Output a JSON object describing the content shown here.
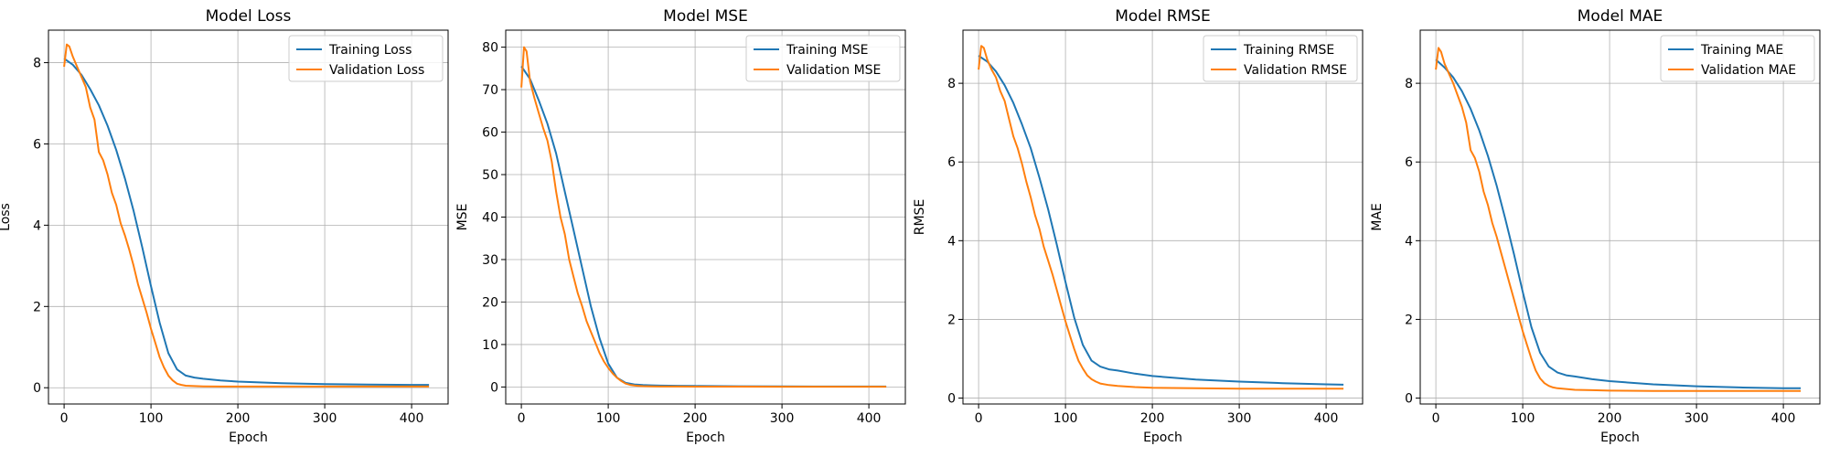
{
  "figure": {
    "background": "#ffffff"
  },
  "chart_data": [
    {
      "type": "line",
      "title": "Model Loss",
      "xlabel": "Epoch",
      "ylabel": "Loss",
      "xlim": [
        -18,
        442
      ],
      "ylim": [
        -0.4,
        8.8
      ],
      "xticks": [
        0,
        100,
        200,
        300,
        400
      ],
      "yticks": [
        0,
        2,
        4,
        6,
        8
      ],
      "grid": true,
      "legend": "top-right",
      "series": [
        {
          "name": "Training Loss",
          "color": "#1f77b4",
          "x": [
            0,
            10,
            20,
            30,
            40,
            50,
            60,
            70,
            80,
            90,
            100,
            110,
            120,
            130,
            140,
            150,
            160,
            180,
            200,
            250,
            300,
            350,
            400,
            420
          ],
          "y": [
            8.1,
            7.95,
            7.7,
            7.35,
            6.95,
            6.45,
            5.85,
            5.15,
            4.35,
            3.45,
            2.5,
            1.6,
            0.85,
            0.45,
            0.3,
            0.25,
            0.22,
            0.18,
            0.15,
            0.11,
            0.09,
            0.08,
            0.07,
            0.07
          ]
        },
        {
          "name": "Validation Loss",
          "color": "#ff7f0e",
          "x": [
            0,
            3,
            6,
            10,
            15,
            20,
            25,
            30,
            35,
            40,
            45,
            50,
            55,
            60,
            65,
            70,
            75,
            80,
            85,
            90,
            95,
            100,
            105,
            110,
            115,
            120,
            125,
            130,
            135,
            140,
            150,
            160,
            180,
            200,
            250,
            300,
            350,
            400,
            420
          ],
          "y": [
            7.9,
            8.45,
            8.4,
            8.15,
            7.9,
            7.65,
            7.4,
            6.9,
            6.6,
            5.8,
            5.6,
            5.25,
            4.8,
            4.5,
            4.05,
            3.75,
            3.4,
            3.0,
            2.55,
            2.2,
            1.85,
            1.45,
            1.1,
            0.75,
            0.5,
            0.3,
            0.18,
            0.1,
            0.07,
            0.05,
            0.04,
            0.035,
            0.03,
            0.03,
            0.03,
            0.03,
            0.03,
            0.03,
            0.03
          ]
        }
      ]
    },
    {
      "type": "line",
      "title": "Model MSE",
      "xlabel": "Epoch",
      "ylabel": "MSE",
      "xlim": [
        -18,
        442
      ],
      "ylim": [
        -4,
        84
      ],
      "xticks": [
        0,
        100,
        200,
        300,
        400
      ],
      "yticks": [
        0,
        10,
        20,
        30,
        40,
        50,
        60,
        70,
        80
      ],
      "grid": true,
      "legend": "top-right",
      "series": [
        {
          "name": "Training MSE",
          "color": "#1f77b4",
          "x": [
            0,
            10,
            20,
            30,
            40,
            50,
            60,
            70,
            80,
            90,
            100,
            110,
            120,
            130,
            140,
            150,
            160,
            180,
            200,
            250,
            300,
            350,
            400,
            420
          ],
          "y": [
            75.5,
            72.5,
            67.5,
            62,
            55,
            46,
            37,
            28,
            19,
            11.5,
            5.5,
            2.2,
            1.0,
            0.6,
            0.45,
            0.38,
            0.33,
            0.28,
            0.24,
            0.18,
            0.14,
            0.12,
            0.11,
            0.1
          ]
        },
        {
          "name": "Validation MSE",
          "color": "#ff7f0e",
          "x": [
            0,
            3,
            6,
            10,
            15,
            20,
            25,
            30,
            35,
            40,
            45,
            50,
            55,
            60,
            65,
            70,
            75,
            80,
            85,
            90,
            95,
            100,
            105,
            110,
            115,
            120,
            125,
            130,
            135,
            140,
            150,
            160,
            180,
            200,
            250,
            300,
            350,
            400,
            420
          ],
          "y": [
            70.5,
            80,
            79,
            72,
            68,
            64.5,
            61,
            58,
            53,
            46,
            40,
            36,
            30,
            26,
            22,
            19,
            15.5,
            13,
            10.5,
            8,
            6,
            4.5,
            3.2,
            2.2,
            1.4,
            0.8,
            0.5,
            0.35,
            0.25,
            0.2,
            0.15,
            0.12,
            0.1,
            0.09,
            0.08,
            0.07,
            0.06,
            0.06,
            0.06
          ]
        }
      ]
    },
    {
      "type": "line",
      "title": "Model RMSE",
      "xlabel": "Epoch",
      "ylabel": "RMSE",
      "xlim": [
        -18,
        442
      ],
      "ylim": [
        -0.15,
        9.35
      ],
      "xticks": [
        0,
        100,
        200,
        300,
        400
      ],
      "yticks": [
        0,
        2,
        4,
        6,
        8
      ],
      "grid": true,
      "legend": "top-right",
      "series": [
        {
          "name": "Training RMSE",
          "color": "#1f77b4",
          "x": [
            0,
            10,
            20,
            30,
            40,
            50,
            60,
            70,
            80,
            90,
            100,
            110,
            120,
            130,
            140,
            150,
            160,
            180,
            200,
            250,
            300,
            350,
            400,
            420
          ],
          "y": [
            8.7,
            8.55,
            8.3,
            7.95,
            7.5,
            6.95,
            6.35,
            5.6,
            4.8,
            3.9,
            2.95,
            2.05,
            1.35,
            0.95,
            0.8,
            0.73,
            0.7,
            0.62,
            0.56,
            0.47,
            0.42,
            0.38,
            0.35,
            0.34
          ]
        },
        {
          "name": "Validation RMSE",
          "color": "#ff7f0e",
          "x": [
            0,
            3,
            6,
            10,
            15,
            20,
            25,
            30,
            35,
            40,
            45,
            50,
            55,
            60,
            65,
            70,
            75,
            80,
            85,
            90,
            95,
            100,
            105,
            110,
            115,
            120,
            125,
            130,
            135,
            140,
            150,
            160,
            180,
            200,
            250,
            300,
            350,
            400,
            420
          ],
          "y": [
            8.35,
            8.95,
            8.9,
            8.6,
            8.35,
            8.15,
            7.8,
            7.55,
            7.1,
            6.65,
            6.35,
            5.95,
            5.5,
            5.1,
            4.65,
            4.3,
            3.85,
            3.5,
            3.15,
            2.75,
            2.35,
            1.95,
            1.6,
            1.25,
            0.95,
            0.75,
            0.58,
            0.48,
            0.42,
            0.37,
            0.33,
            0.31,
            0.28,
            0.26,
            0.25,
            0.24,
            0.24,
            0.24,
            0.24
          ]
        }
      ]
    },
    {
      "type": "line",
      "title": "Model MAE",
      "xlabel": "Epoch",
      "ylabel": "MAE",
      "xlim": [
        -18,
        442
      ],
      "ylim": [
        -0.15,
        9.35
      ],
      "xticks": [
        0,
        100,
        200,
        300,
        400
      ],
      "yticks": [
        0,
        2,
        4,
        6,
        8
      ],
      "grid": true,
      "legend": "top-right",
      "series": [
        {
          "name": "Training MAE",
          "color": "#1f77b4",
          "x": [
            0,
            10,
            20,
            30,
            40,
            50,
            60,
            70,
            80,
            90,
            100,
            110,
            120,
            130,
            140,
            150,
            160,
            180,
            200,
            250,
            300,
            350,
            400,
            420
          ],
          "y": [
            8.6,
            8.4,
            8.15,
            7.8,
            7.35,
            6.8,
            6.15,
            5.4,
            4.55,
            3.65,
            2.7,
            1.8,
            1.15,
            0.8,
            0.65,
            0.58,
            0.55,
            0.48,
            0.43,
            0.35,
            0.3,
            0.27,
            0.25,
            0.25
          ]
        },
        {
          "name": "Validation MAE",
          "color": "#ff7f0e",
          "x": [
            0,
            3,
            6,
            10,
            15,
            20,
            25,
            30,
            35,
            40,
            45,
            50,
            55,
            60,
            65,
            70,
            75,
            80,
            85,
            90,
            95,
            100,
            105,
            110,
            115,
            120,
            125,
            130,
            135,
            140,
            150,
            160,
            180,
            200,
            250,
            300,
            350,
            400,
            420
          ],
          "y": [
            8.35,
            8.9,
            8.8,
            8.5,
            8.25,
            8.0,
            7.7,
            7.4,
            7.0,
            6.3,
            6.1,
            5.75,
            5.25,
            4.9,
            4.45,
            4.1,
            3.7,
            3.3,
            2.9,
            2.5,
            2.1,
            1.7,
            1.35,
            1.0,
            0.7,
            0.5,
            0.38,
            0.31,
            0.27,
            0.25,
            0.23,
            0.21,
            0.2,
            0.19,
            0.18,
            0.18,
            0.18,
            0.18,
            0.18
          ]
        }
      ]
    }
  ]
}
